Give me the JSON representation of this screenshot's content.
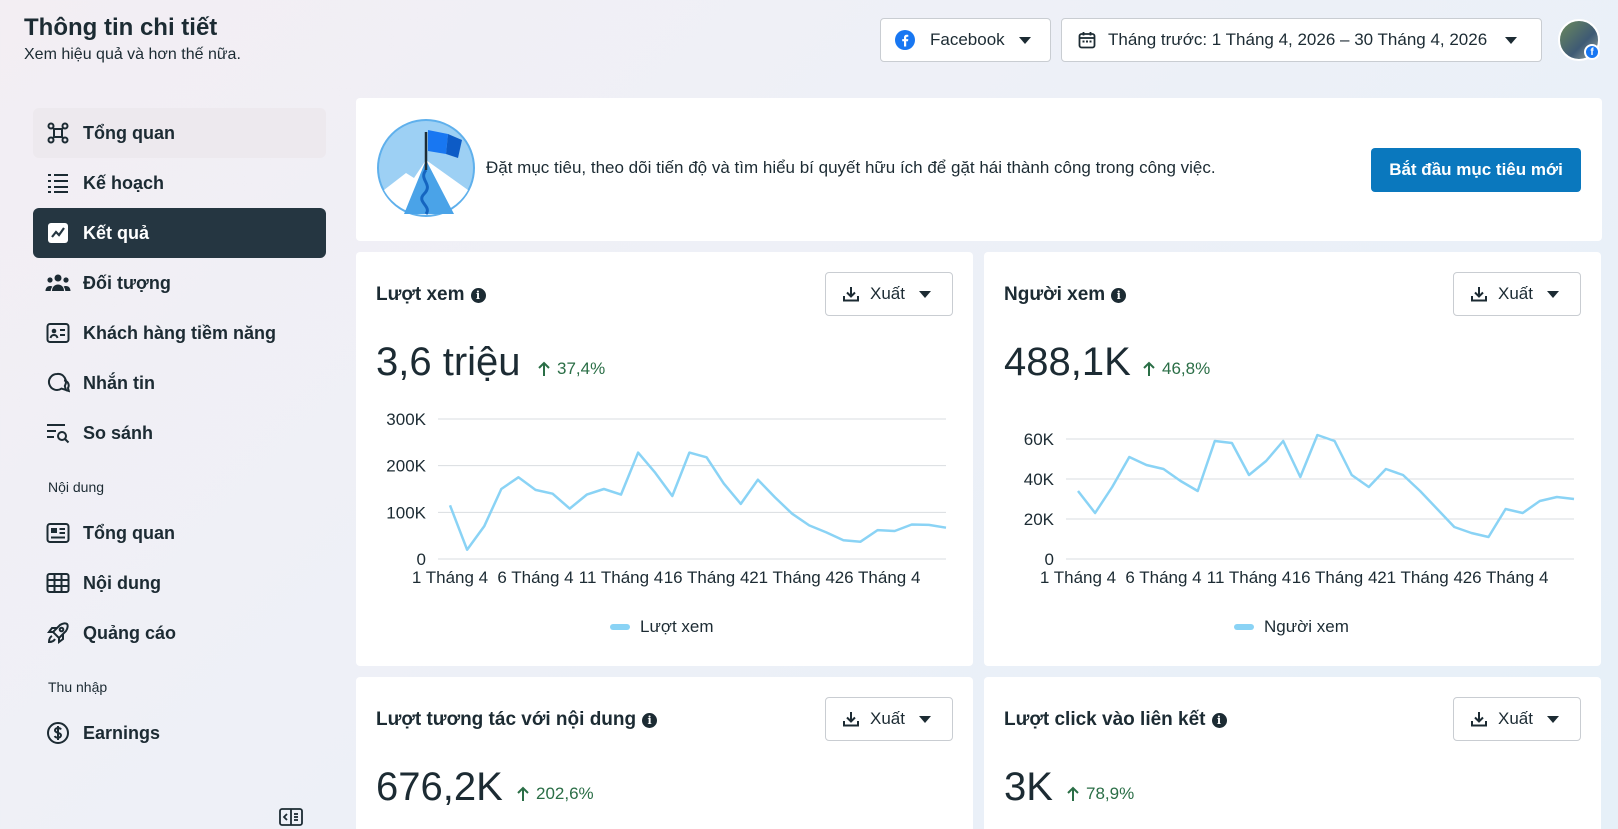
{
  "header": {
    "title": "Thông tin chi tiết",
    "subtitle": "Xem hiệu quả và hơn thế nữa.",
    "platform_label": "Facebook",
    "date_range_label": "Tháng trước: 1 Tháng 4, 2026 – 30 Tháng 4, 2026"
  },
  "sidebar": {
    "items": [
      {
        "label": "Tổng quan",
        "icon": "overview-icon"
      },
      {
        "label": "Kế hoạch",
        "icon": "plan-list-icon"
      },
      {
        "label": "Kết quả",
        "icon": "results-chart-icon"
      },
      {
        "label": "Đối tượng",
        "icon": "audience-icon"
      },
      {
        "label": "Khách hàng tiềm năng",
        "icon": "leads-card-icon"
      },
      {
        "label": "Nhắn tin",
        "icon": "messaging-icon"
      },
      {
        "label": "So sánh",
        "icon": "compare-icon"
      }
    ],
    "content_section": "Nội dung",
    "content_items": [
      {
        "label": "Tổng quan",
        "icon": "content-overview-icon"
      },
      {
        "label": "Nội dung",
        "icon": "content-table-icon"
      },
      {
        "label": "Quảng cáo",
        "icon": "rocket-icon"
      }
    ],
    "income_section": "Thu nhập",
    "income_items": [
      {
        "label": "Earnings",
        "icon": "dollar-icon"
      }
    ]
  },
  "goal": {
    "text": "Đặt mục tiêu, theo dõi tiến độ và tìm hiểu bí quyết hữu ích để gặt hái thành công trong công việc.",
    "button": "Bắt đầu mục tiêu mới"
  },
  "export_label": "Xuất",
  "metrics": [
    {
      "title": "Lượt xem",
      "value": "3,6 triệu",
      "change": "37,4%",
      "legend": "Lượt xem"
    },
    {
      "title": "Người xem",
      "value": "488,1K",
      "change": "46,8%",
      "legend": "Người xem"
    },
    {
      "title": "Lượt tương tác với nội dung",
      "value": "676,2K",
      "change": "202,6%"
    },
    {
      "title": "Lượt click vào liên kết",
      "value": "3K",
      "change": "78,9%"
    }
  ],
  "colors": {
    "line": "#8ad3f5",
    "accent": "#0a78be",
    "active_nav": "#253641",
    "positive": "#2a6e46"
  },
  "chart_data": [
    {
      "type": "line",
      "series": [
        {
          "name": "Lượt xem",
          "values": [
            115000,
            20000,
            70000,
            150000,
            175000,
            148000,
            140000,
            108000,
            138000,
            150000,
            138000,
            228000,
            185000,
            135000,
            228000,
            218000,
            162000,
            118000,
            170000,
            132000,
            97000,
            72000,
            57000,
            40000,
            37000,
            62000,
            60000,
            74000,
            73000,
            67000
          ]
        }
      ],
      "x": [
        "1 Tháng 4",
        "2 Tháng 4",
        "3 Tháng 4",
        "4 Tháng 4",
        "5 Tháng 4",
        "6 Tháng 4",
        "7 Tháng 4",
        "8 Tháng 4",
        "9 Tháng 4",
        "10 Tháng 4",
        "11 Tháng 4",
        "12 Tháng 4",
        "13 Tháng 4",
        "14 Tháng 4",
        "15 Tháng 4",
        "16 Tháng 4",
        "17 Tháng 4",
        "18 Tháng 4",
        "19 Tháng 4",
        "20 Tháng 4",
        "21 Tháng 4",
        "22 Tháng 4",
        "23 Tháng 4",
        "24 Tháng 4",
        "25 Tháng 4",
        "26 Tháng 4",
        "27 Tháng 4",
        "28 Tháng 4",
        "29 Tháng 4",
        "30 Tháng 4"
      ],
      "x_tick_labels": [
        "1 Tháng 4",
        "6 Tháng 4",
        "11 Tháng 4",
        "16 Tháng 4",
        "21 Tháng 4",
        "26 Tháng 4"
      ],
      "y_ticks": [
        "0",
        "100K",
        "200K",
        "300K"
      ],
      "ylim": [
        0,
        300000
      ],
      "grid": true,
      "legend": "bottom"
    },
    {
      "type": "line",
      "series": [
        {
          "name": "Người xem",
          "values": [
            34000,
            23000,
            36000,
            51000,
            47000,
            45000,
            39000,
            34000,
            59000,
            58000,
            42000,
            49000,
            59000,
            41000,
            62000,
            59000,
            42000,
            36000,
            45000,
            42000,
            34000,
            25000,
            16000,
            13000,
            11000,
            25000,
            23000,
            29000,
            31000,
            30000
          ]
        }
      ],
      "x": [
        "1 Tháng 4",
        "2 Tháng 4",
        "3 Tháng 4",
        "4 Tháng 4",
        "5 Tháng 4",
        "6 Tháng 4",
        "7 Tháng 4",
        "8 Tháng 4",
        "9 Tháng 4",
        "10 Tháng 4",
        "11 Tháng 4",
        "12 Tháng 4",
        "13 Tháng 4",
        "14 Tháng 4",
        "15 Tháng 4",
        "16 Tháng 4",
        "17 Tháng 4",
        "18 Tháng 4",
        "19 Tháng 4",
        "20 Tháng 4",
        "21 Tháng 4",
        "22 Tháng 4",
        "23 Tháng 4",
        "24 Tháng 4",
        "25 Tháng 4",
        "26 Tháng 4",
        "27 Tháng 4",
        "28 Tháng 4",
        "29 Tháng 4",
        "30 Tháng 4"
      ],
      "x_tick_labels": [
        "1 Tháng 4",
        "6 Tháng 4",
        "11 Tháng 4",
        "16 Tháng 4",
        "21 Tháng 4",
        "26 Tháng 4"
      ],
      "y_ticks": [
        "0",
        "20K",
        "40K",
        "60K"
      ],
      "ylim": [
        0,
        60000
      ],
      "grid": true,
      "legend": "bottom"
    }
  ]
}
